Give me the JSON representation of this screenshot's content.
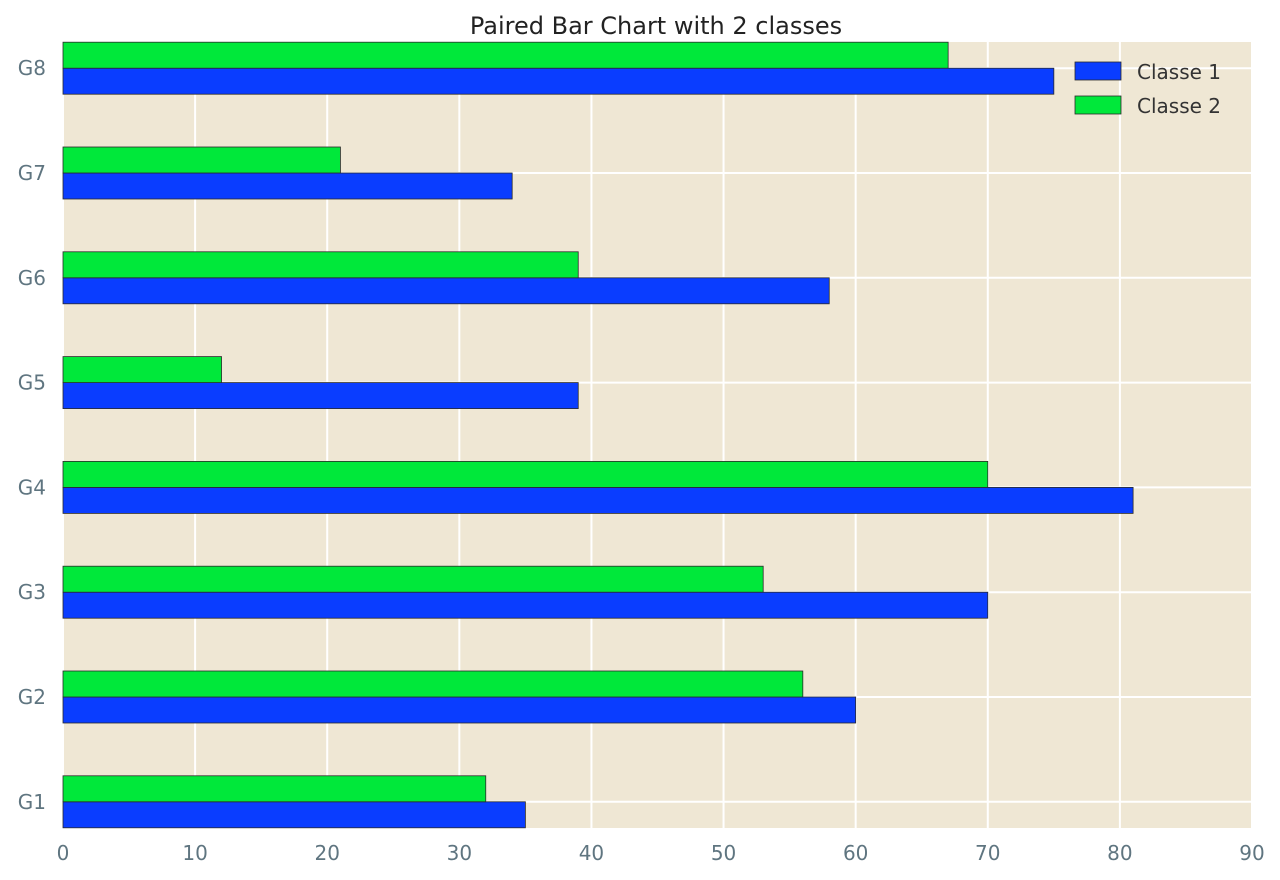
{
  "chart_data": {
    "type": "bar",
    "orientation": "horizontal",
    "title": "Paired Bar Chart with 2 classes",
    "xlabel": "",
    "ylabel": "",
    "categories": [
      "G1",
      "G2",
      "G3",
      "G4",
      "G5",
      "G6",
      "G7",
      "G8"
    ],
    "series": [
      {
        "name": "Classe 1",
        "color": "#0a3dff",
        "values": [
          35,
          60,
          70,
          81,
          39,
          58,
          34,
          75
        ]
      },
      {
        "name": "Classe 2",
        "color": "#00e83a",
        "values": [
          32,
          56,
          53,
          70,
          12,
          39,
          21,
          67
        ]
      }
    ],
    "xlim": [
      0,
      90
    ],
    "xticks": [
      0,
      10,
      20,
      30,
      40,
      50,
      60,
      70,
      80,
      90
    ],
    "grid": true,
    "legend_position": "top-right",
    "plot_background": "#efe7d4"
  }
}
